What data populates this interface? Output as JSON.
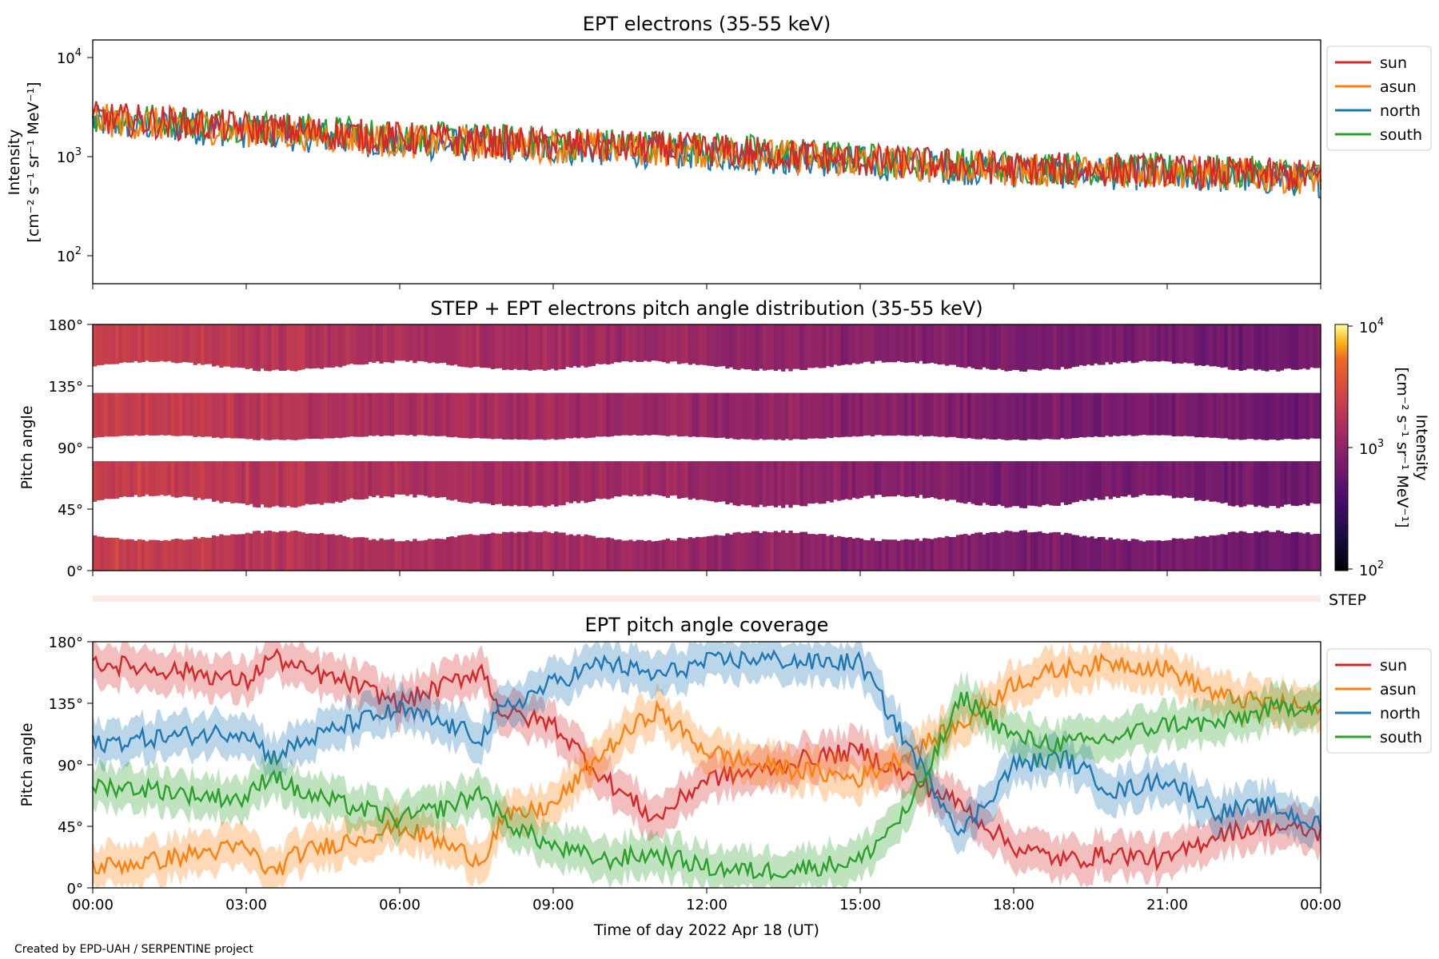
{
  "colors": {
    "sun": "#d62728",
    "asun": "#ff7f0e",
    "north": "#1f77b4",
    "south": "#2ca02c"
  },
  "panel1": {
    "title": "EPT electrons (35-55 keV)",
    "ylabel_line1": "Intensity",
    "ylabel_line2": "[cm⁻² s⁻¹ sr⁻¹ MeV⁻¹]",
    "ytick_labels": [
      "10",
      "10",
      "10"
    ],
    "ytick_exps": [
      "2",
      "3",
      "4"
    ],
    "legend": [
      "sun",
      "asun",
      "north",
      "south"
    ]
  },
  "panel2": {
    "title": "STEP + EPT electrons pitch angle distribution (35-55 keV)",
    "ylabel": "Pitch angle",
    "ytick_labels": [
      "0°",
      "45°",
      "90°",
      "135°",
      "180°"
    ],
    "colorbar_label_line1": "Intensity",
    "colorbar_label_line2": "[cm⁻² s⁻¹ sr⁻¹ MeV⁻¹]",
    "colorbar_tick_labels": [
      "10",
      "10",
      "10"
    ],
    "colorbar_tick_exps": [
      "2",
      "3",
      "4"
    ]
  },
  "step_strip": {
    "label": "STEP"
  },
  "panel3": {
    "title": "EPT pitch angle coverage",
    "ylabel": "Pitch angle",
    "ytick_labels": [
      "0°",
      "45°",
      "90°",
      "135°",
      "180°"
    ],
    "legend": [
      "sun",
      "asun",
      "north",
      "south"
    ]
  },
  "xaxis": {
    "label": "Time of day 2022 Apr 18 (UT)",
    "tick_labels": [
      "00:00",
      "03:00",
      "06:00",
      "09:00",
      "12:00",
      "15:00",
      "18:00",
      "21:00",
      "00:00"
    ]
  },
  "credit": "Created by EPD-UAH / SERPENTINE project",
  "chart_data": [
    {
      "type": "line",
      "title": "EPT electrons (35-55 keV)",
      "ylabel": "Intensity [cm⁻² s⁻¹ sr⁻¹ MeV⁻¹]",
      "xlabel": "",
      "yscale": "log",
      "ylim": [
        50,
        14000
      ],
      "x_hours": [
        0,
        3,
        6,
        9,
        12,
        15,
        18,
        21,
        24
      ],
      "series": [
        {
          "name": "sun",
          "values": [
            2400,
            1900,
            1500,
            1300,
            1150,
            900,
            750,
            700,
            620
          ]
        },
        {
          "name": "asun",
          "values": [
            2300,
            1800,
            1400,
            1250,
            1100,
            880,
            720,
            690,
            600
          ]
        },
        {
          "name": "north",
          "values": [
            2200,
            1750,
            1350,
            1200,
            1050,
            850,
            700,
            650,
            560
          ]
        },
        {
          "name": "south",
          "values": [
            2500,
            2000,
            1550,
            1350,
            1200,
            920,
            770,
            720,
            640
          ]
        }
      ],
      "legend": "right-outside"
    },
    {
      "type": "heatmap",
      "title": "STEP + EPT electrons pitch angle distribution (35-55 keV)",
      "ylabel": "Pitch angle",
      "ylim": [
        0,
        180
      ],
      "colorscale": "inferno",
      "color_range": [
        100,
        10000
      ],
      "x_hours": [
        0,
        3,
        6,
        9,
        12,
        15,
        18,
        21,
        24
      ],
      "intensity": [
        2400,
        1900,
        1500,
        1300,
        1150,
        900,
        750,
        700,
        620
      ]
    },
    {
      "type": "line",
      "title": "EPT pitch angle coverage",
      "ylabel": "Pitch angle",
      "ylim": [
        0,
        180
      ],
      "x_hours": [
        0,
        1.25,
        2,
        3,
        3.5,
        4,
        5,
        6,
        7,
        7.6,
        8,
        9,
        10,
        11,
        12,
        13,
        14,
        15,
        16,
        17,
        18,
        19,
        20,
        21,
        22,
        23,
        24
      ],
      "series": [
        {
          "name": "sun",
          "values": [
            165,
            160,
            158,
            150,
            170,
            160,
            150,
            135,
            150,
            160,
            128,
            120,
            80,
            50,
            80,
            85,
            95,
            100,
            80,
            60,
            30,
            20,
            25,
            20,
            40,
            45,
            40
          ]
        },
        {
          "name": "asun",
          "values": [
            15,
            20,
            25,
            30,
            10,
            25,
            35,
            45,
            30,
            20,
            50,
            60,
            100,
            130,
            100,
            90,
            85,
            80,
            100,
            120,
            150,
            160,
            165,
            160,
            140,
            135,
            130
          ]
        },
        {
          "name": "north",
          "values": [
            105,
            110,
            112,
            115,
            95,
            105,
            120,
            130,
            118,
            110,
            130,
            150,
            165,
            155,
            165,
            168,
            165,
            165,
            100,
            40,
            90,
            95,
            70,
            80,
            55,
            60,
            45
          ]
        },
        {
          "name": "south",
          "values": [
            75,
            72,
            68,
            65,
            85,
            70,
            60,
            50,
            60,
            70,
            50,
            30,
            20,
            25,
            15,
            12,
            15,
            20,
            60,
            140,
            110,
            105,
            110,
            120,
            120,
            130,
            135
          ]
        }
      ],
      "legend": "right-outside"
    }
  ]
}
